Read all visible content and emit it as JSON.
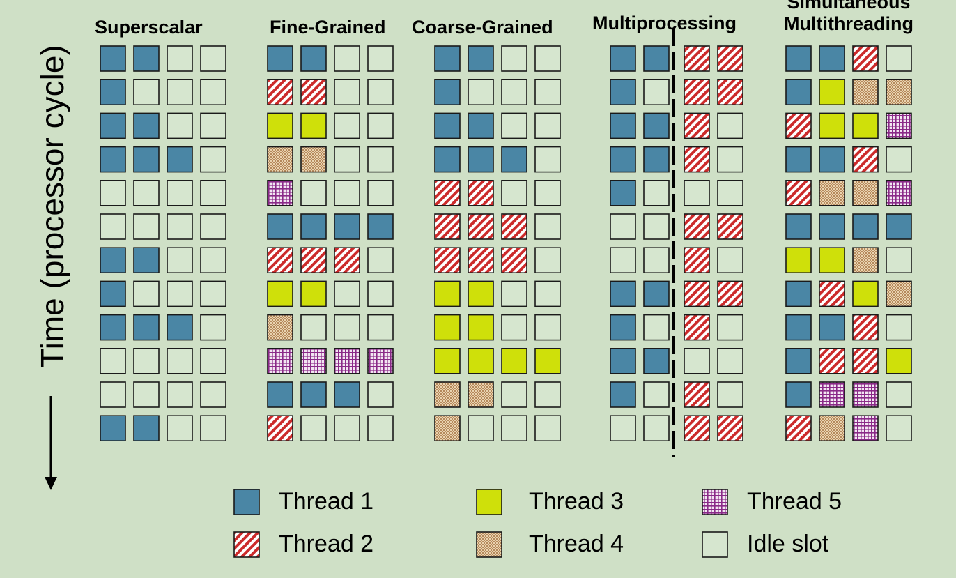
{
  "axis_label": "Time (processor cycle)",
  "colors": {
    "background": "#cfe0c6",
    "thread1": "#4a86a5",
    "thread2_bg": "#ffffff",
    "thread2_stripe": "#cc2b2b",
    "thread3": "#cfe00a",
    "thread4_bg": "#e9d3b0",
    "thread4_dot": "#b5895c",
    "thread5_bg": "#f2e6f2",
    "thread5_line": "#8a2a88",
    "idle": "#d6e6cf"
  },
  "legend": [
    {
      "key": "thread1",
      "label": "Thread 1"
    },
    {
      "key": "thread2",
      "label": "Thread 2"
    },
    {
      "key": "thread3",
      "label": "Thread 3"
    },
    {
      "key": "thread4",
      "label": "Thread 4"
    },
    {
      "key": "thread5",
      "label": "Thread 5"
    },
    {
      "key": "idle",
      "label": "Idle slot"
    }
  ],
  "panels": [
    {
      "title": "Superscalar",
      "rows": [
        [
          1,
          1,
          0,
          0
        ],
        [
          1,
          0,
          0,
          0
        ],
        [
          1,
          1,
          0,
          0
        ],
        [
          1,
          1,
          1,
          0
        ],
        [
          0,
          0,
          0,
          0
        ],
        [
          0,
          0,
          0,
          0
        ],
        [
          1,
          1,
          0,
          0
        ],
        [
          1,
          0,
          0,
          0
        ],
        [
          1,
          1,
          1,
          0
        ],
        [
          0,
          0,
          0,
          0
        ],
        [
          0,
          0,
          0,
          0
        ],
        [
          1,
          1,
          0,
          0
        ]
      ]
    },
    {
      "title": "Fine-Grained",
      "rows": [
        [
          1,
          1,
          0,
          0
        ],
        [
          2,
          2,
          0,
          0
        ],
        [
          3,
          3,
          0,
          0
        ],
        [
          4,
          4,
          0,
          0
        ],
        [
          5,
          0,
          0,
          0
        ],
        [
          1,
          1,
          1,
          1
        ],
        [
          2,
          2,
          2,
          0
        ],
        [
          3,
          3,
          0,
          0
        ],
        [
          4,
          0,
          0,
          0
        ],
        [
          5,
          5,
          5,
          5
        ],
        [
          1,
          1,
          1,
          0
        ],
        [
          2,
          0,
          0,
          0
        ]
      ]
    },
    {
      "title": "Coarse-Grained",
      "rows": [
        [
          1,
          1,
          0,
          0
        ],
        [
          1,
          0,
          0,
          0
        ],
        [
          1,
          1,
          0,
          0
        ],
        [
          1,
          1,
          1,
          0
        ],
        [
          2,
          2,
          0,
          0
        ],
        [
          2,
          2,
          2,
          0
        ],
        [
          2,
          2,
          2,
          0
        ],
        [
          3,
          3,
          0,
          0
        ],
        [
          3,
          3,
          0,
          0
        ],
        [
          3,
          3,
          3,
          3
        ],
        [
          4,
          4,
          0,
          0
        ],
        [
          4,
          0,
          0,
          0
        ]
      ]
    },
    {
      "title": "Multiprocessing",
      "rows": [
        [
          1,
          1,
          2,
          2
        ],
        [
          1,
          0,
          2,
          2
        ],
        [
          1,
          1,
          2,
          0
        ],
        [
          1,
          1,
          2,
          0
        ],
        [
          1,
          0,
          0,
          0
        ],
        [
          0,
          0,
          2,
          2
        ],
        [
          0,
          0,
          2,
          0
        ],
        [
          1,
          1,
          2,
          2
        ],
        [
          1,
          0,
          2,
          0
        ],
        [
          1,
          1,
          0,
          0
        ],
        [
          1,
          0,
          2,
          0
        ],
        [
          0,
          0,
          2,
          2
        ]
      ]
    },
    {
      "title": "Simultaneous Multithreading",
      "title_lines": [
        "Simultaneous",
        "Multithreading"
      ],
      "rows": [
        [
          1,
          1,
          2,
          0
        ],
        [
          1,
          3,
          4,
          4
        ],
        [
          2,
          3,
          3,
          5
        ],
        [
          1,
          1,
          2,
          0
        ],
        [
          2,
          4,
          4,
          5
        ],
        [
          1,
          1,
          1,
          1
        ],
        [
          3,
          3,
          4,
          0
        ],
        [
          1,
          2,
          3,
          4
        ],
        [
          1,
          1,
          2,
          0
        ],
        [
          1,
          2,
          2,
          3
        ],
        [
          1,
          5,
          5,
          0
        ],
        [
          2,
          4,
          5,
          0
        ]
      ]
    }
  ]
}
